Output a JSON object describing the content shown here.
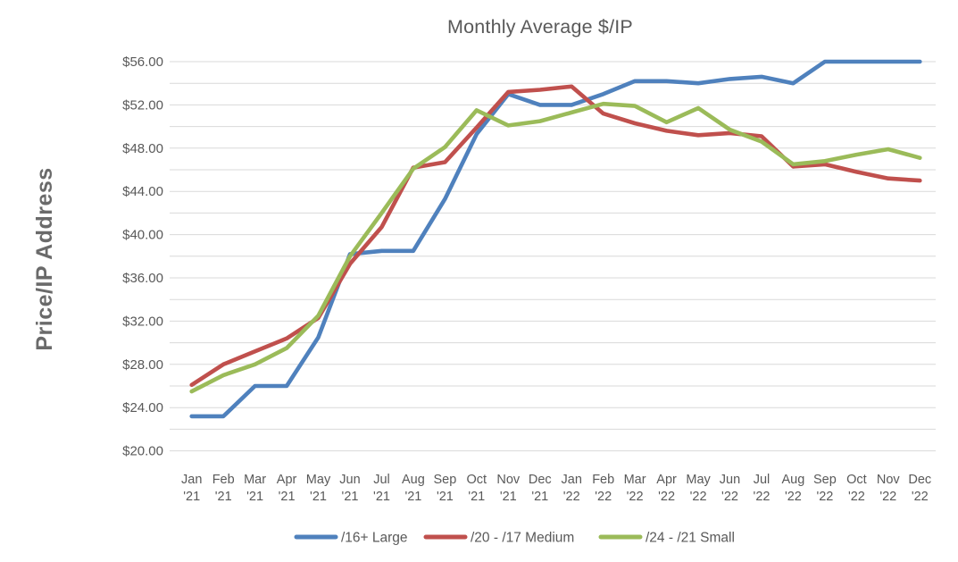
{
  "chart_data": {
    "type": "line",
    "title": "Monthly Average $/IP",
    "ylabel": "Price/IP Address",
    "ylim": [
      20,
      56
    ],
    "y_major_step": 4,
    "y_minor_step": 2,
    "grid": true,
    "legend_position": "bottom",
    "y_tick_labels": [
      "$56.00",
      "$52.00",
      "$48.00",
      "$44.00",
      "$40.00",
      "$36.00",
      "$32.00",
      "$28.00",
      "$24.00",
      "$20.00"
    ],
    "categories": [
      {
        "month": "Jan",
        "year": "'21"
      },
      {
        "month": "Feb",
        "year": "'21"
      },
      {
        "month": "Mar",
        "year": "'21"
      },
      {
        "month": "Apr",
        "year": "'21"
      },
      {
        "month": "May",
        "year": "'21"
      },
      {
        "month": "Jun",
        "year": "'21"
      },
      {
        "month": "Jul",
        "year": "'21"
      },
      {
        "month": "Aug",
        "year": "'21"
      },
      {
        "month": "Sep",
        "year": "'21"
      },
      {
        "month": "Oct",
        "year": "'21"
      },
      {
        "month": "Nov",
        "year": "'21"
      },
      {
        "month": "Dec",
        "year": "'21"
      },
      {
        "month": "Jan",
        "year": "'22"
      },
      {
        "month": "Feb",
        "year": "'22"
      },
      {
        "month": "Mar",
        "year": "'22"
      },
      {
        "month": "Apr",
        "year": "'22"
      },
      {
        "month": "May",
        "year": "'22"
      },
      {
        "month": "Jun",
        "year": "'22"
      },
      {
        "month": "Jul",
        "year": "'22"
      },
      {
        "month": "Aug",
        "year": "'22"
      },
      {
        "month": "Sep",
        "year": "'22"
      },
      {
        "month": "Oct",
        "year": "'22"
      },
      {
        "month": "Nov",
        "year": "'22"
      },
      {
        "month": "Dec",
        "year": "'22"
      }
    ],
    "series": [
      {
        "name": "/16+ Large",
        "color": "#4F81BD",
        "values": [
          23.2,
          23.2,
          26.0,
          26.0,
          30.5,
          38.2,
          38.5,
          38.5,
          43.3,
          49.3,
          53.0,
          52.0,
          52.0,
          53.0,
          54.2,
          54.2,
          54.0,
          54.4,
          54.6,
          54.0,
          56.0,
          56.0,
          56.0,
          56.0
        ]
      },
      {
        "name": "/20 - /17 Medium",
        "color": "#C0504D",
        "values": [
          26.1,
          28.0,
          29.2,
          30.4,
          32.3,
          37.3,
          40.7,
          46.2,
          46.7,
          49.9,
          53.2,
          53.4,
          53.7,
          51.2,
          50.3,
          49.6,
          49.2,
          49.4,
          49.1,
          46.3,
          46.5,
          45.8,
          45.2,
          45.0
        ]
      },
      {
        "name": "/24 - /21 Small",
        "color": "#9BBB59",
        "values": [
          25.5,
          27.0,
          28.0,
          29.5,
          32.5,
          38.0,
          42.0,
          46.1,
          48.1,
          51.5,
          50.1,
          50.5,
          51.3,
          52.1,
          51.9,
          50.4,
          51.7,
          49.7,
          48.6,
          46.5,
          46.8,
          47.4,
          47.9,
          47.1
        ]
      }
    ]
  }
}
